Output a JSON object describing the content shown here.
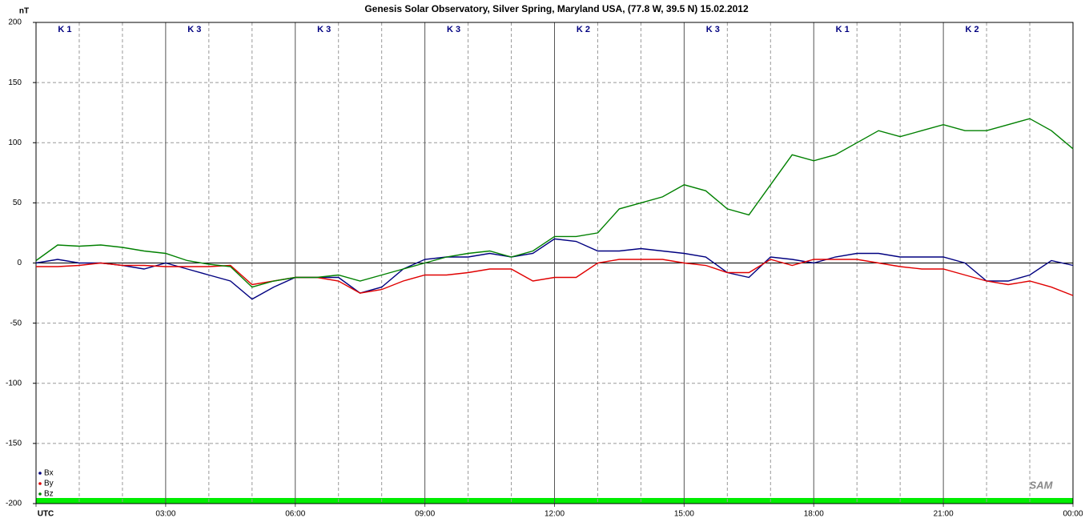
{
  "chart_data": {
    "type": "line",
    "title": "Genesis Solar Observatory, Silver Spring, Maryland USA, (77.8 W, 39.5 N)  15.02.2012",
    "ylabel": "nT",
    "k_labels": [
      "K 1",
      "K 3",
      "K 3",
      "K 3",
      "K 2",
      "K 3",
      "K 1",
      "K 2"
    ],
    "logo": "SAM",
    "x": [
      0,
      0.5,
      1,
      1.5,
      2,
      2.5,
      3,
      3.5,
      4,
      4.5,
      5,
      5.5,
      6,
      6.5,
      7,
      7.5,
      8,
      8.5,
      9,
      9.5,
      10,
      10.5,
      11,
      11.5,
      12,
      12.5,
      13,
      13.5,
      14,
      14.5,
      15,
      15.5,
      16,
      16.5,
      17,
      17.5,
      18,
      18.5,
      19,
      19.5,
      20,
      20.5,
      21,
      21.5,
      22,
      22.5,
      23,
      23.5,
      24
    ],
    "series": [
      {
        "name": "Bx",
        "color": "#000080",
        "values": [
          0,
          3,
          0,
          0,
          -2,
          -5,
          0,
          -5,
          -10,
          -15,
          -30,
          -20,
          -12,
          -12,
          -12,
          -25,
          -20,
          -5,
          3,
          5,
          5,
          8,
          5,
          8,
          20,
          18,
          10,
          10,
          12,
          10,
          8,
          5,
          -8,
          -12,
          5,
          3,
          0,
          5,
          8,
          8,
          5,
          5,
          5,
          0,
          -15,
          -15,
          -10,
          2,
          -2
        ]
      },
      {
        "name": "By",
        "color": "#e00000",
        "values": [
          -3,
          -3,
          -2,
          0,
          -2,
          -2,
          -3,
          -3,
          -3,
          -2,
          -18,
          -15,
          -12,
          -12,
          -15,
          -25,
          -22,
          -15,
          -10,
          -10,
          -8,
          -5,
          -5,
          -15,
          -12,
          -12,
          0,
          3,
          3,
          3,
          0,
          -2,
          -8,
          -8,
          3,
          -2,
          3,
          3,
          3,
          0,
          -3,
          -5,
          -5,
          -10,
          -15,
          -18,
          -15,
          -20,
          -27
        ]
      },
      {
        "name": "Bz",
        "color": "#008000",
        "values": [
          2,
          15,
          14,
          15,
          13,
          10,
          8,
          2,
          -1,
          -3,
          -20,
          -15,
          -12,
          -12,
          -10,
          -15,
          -10,
          -5,
          0,
          5,
          8,
          10,
          5,
          10,
          22,
          22,
          25,
          45,
          50,
          55,
          65,
          60,
          45,
          40,
          65,
          90,
          85,
          90,
          100,
          110,
          105,
          110,
          115,
          110,
          110,
          115,
          120,
          110,
          95
        ]
      }
    ],
    "xlim": [
      0,
      24
    ],
    "xticks": [
      {
        "value": 0,
        "label": "UTC"
      },
      {
        "value": 3,
        "label": "03:00"
      },
      {
        "value": 6,
        "label": "06:00"
      },
      {
        "value": 9,
        "label": "09:00"
      },
      {
        "value": 12,
        "label": "12:00"
      },
      {
        "value": 15,
        "label": "15:00"
      },
      {
        "value": 18,
        "label": "18:00"
      },
      {
        "value": 21,
        "label": "21:00"
      },
      {
        "value": 24,
        "label": "00:00"
      }
    ],
    "minor_xticks": [
      1,
      2,
      4,
      5,
      7,
      8,
      10,
      11,
      13,
      14,
      16,
      17,
      19,
      20,
      22,
      23
    ],
    "ylim": [
      -200,
      200
    ],
    "yticks": [
      200,
      150,
      100,
      50,
      0,
      -50,
      -100,
      -150,
      -200
    ],
    "grid": true
  }
}
